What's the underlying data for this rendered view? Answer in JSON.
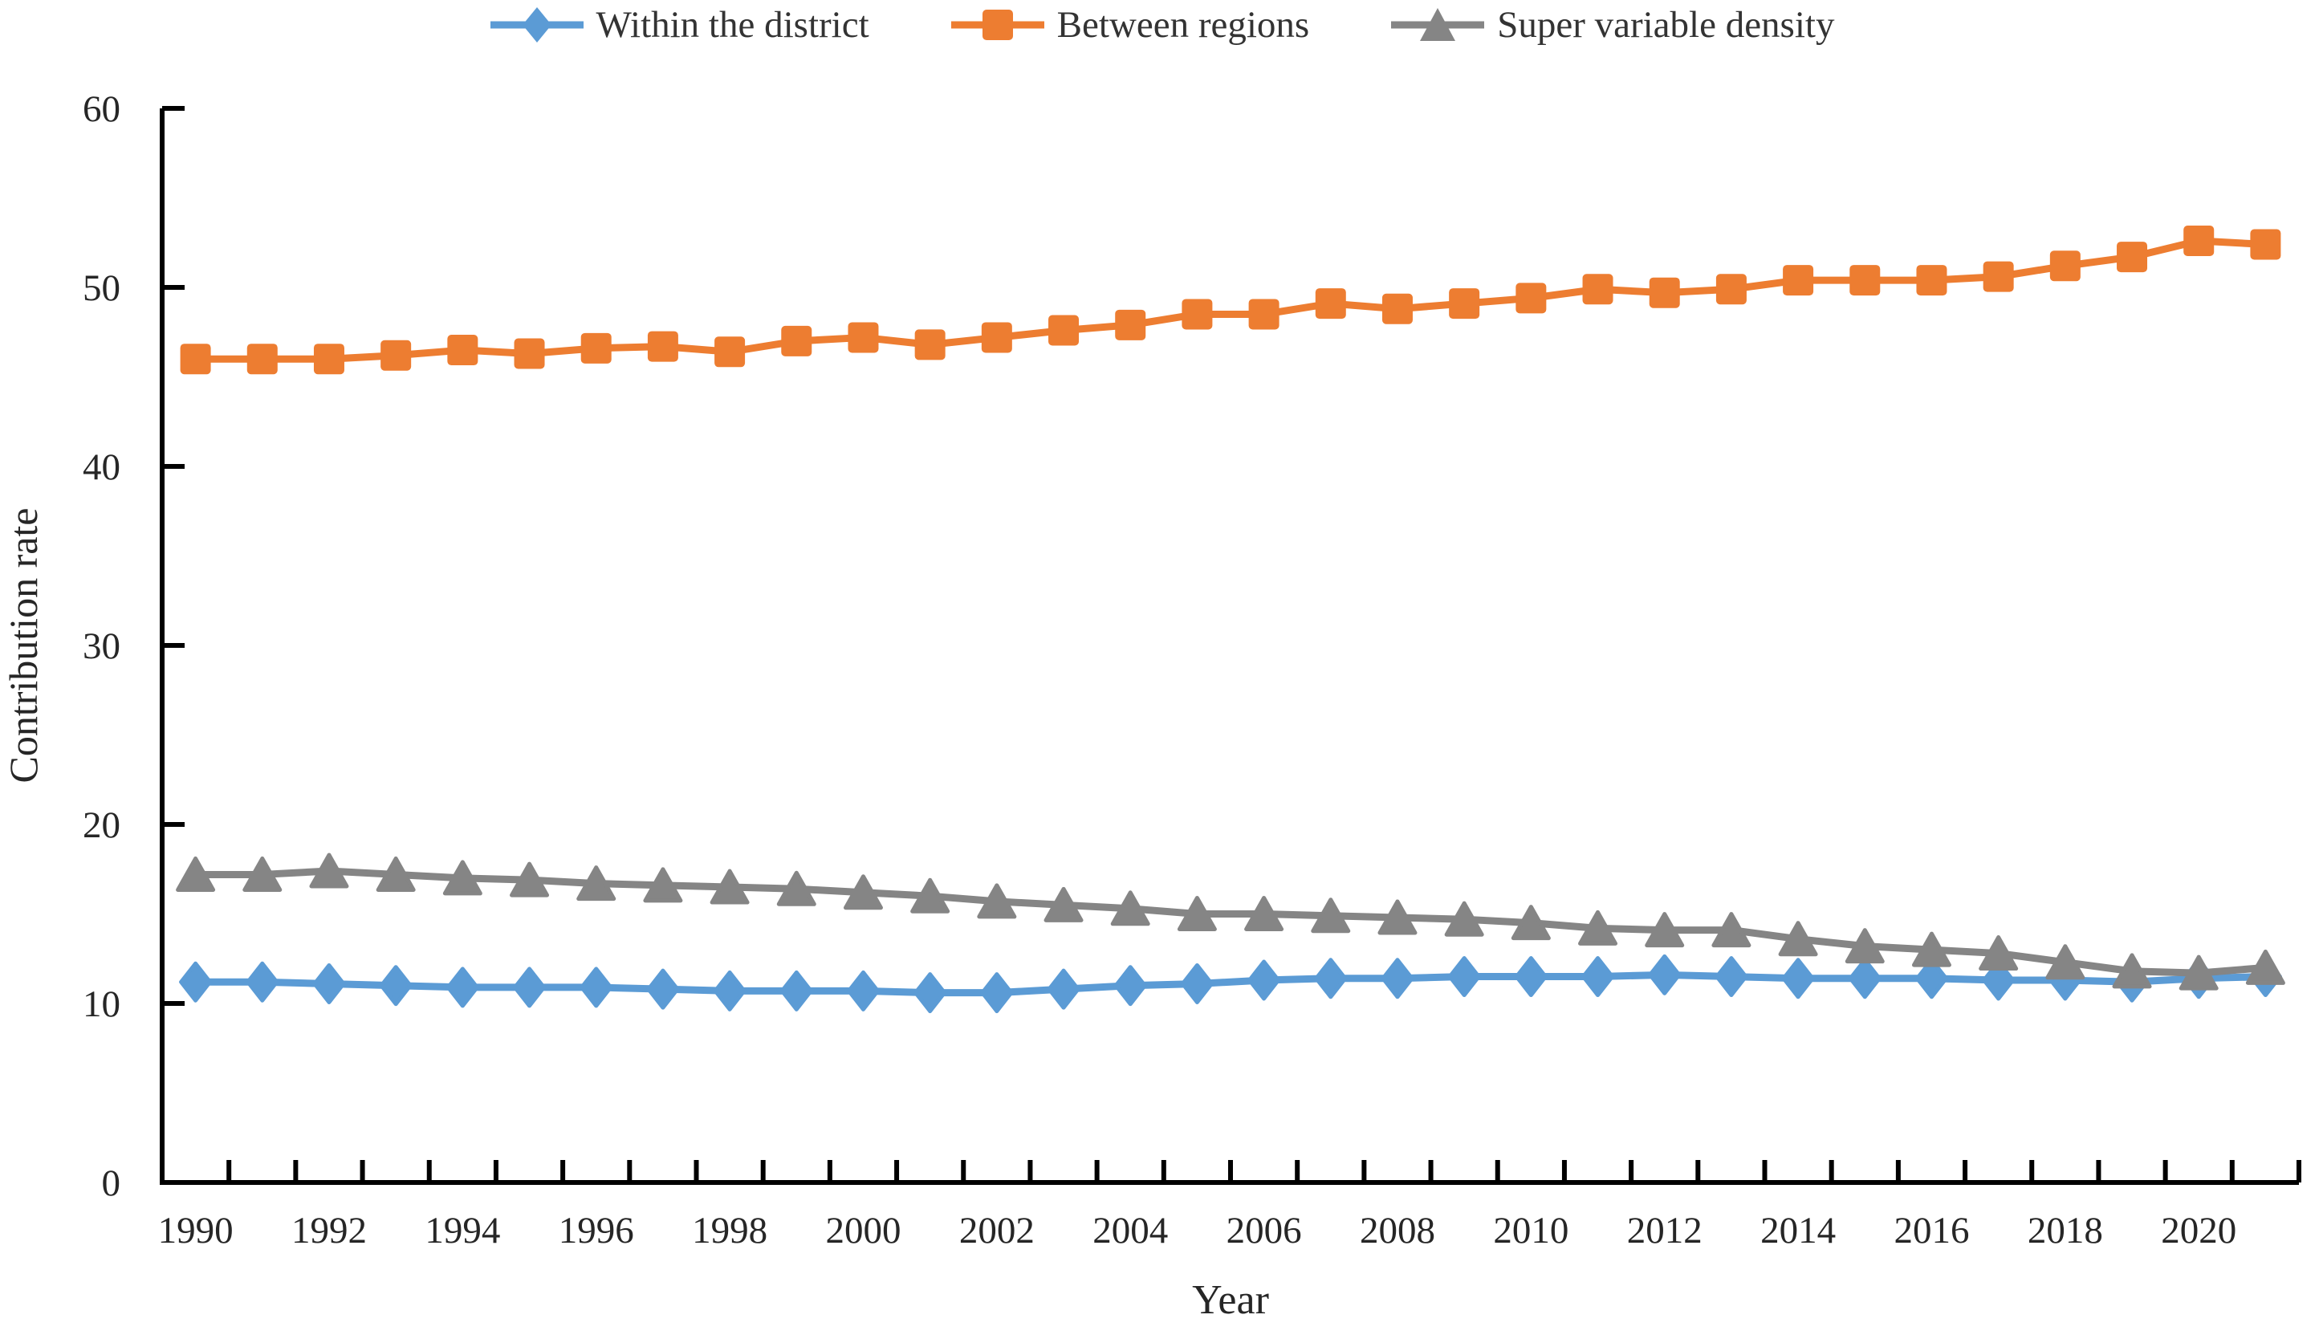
{
  "chart_data": {
    "type": "line",
    "title": "",
    "xlabel": "Year",
    "ylabel": "Contribution rate",
    "x": [
      1990,
      1991,
      1992,
      1993,
      1994,
      1995,
      1996,
      1997,
      1998,
      1999,
      2000,
      2001,
      2002,
      2003,
      2004,
      2005,
      2006,
      2007,
      2008,
      2009,
      2010,
      2011,
      2012,
      2013,
      2014,
      2015,
      2016,
      2017,
      2018,
      2019,
      2020,
      2021
    ],
    "x_tick_labels": [
      "1990",
      "1992",
      "1994",
      "1996",
      "1998",
      "2000",
      "2002",
      "2004",
      "2006",
      "2008",
      "2010",
      "2012",
      "2014",
      "2016",
      "2018",
      "2020"
    ],
    "x_label_every": 2,
    "ylim": [
      0,
      60
    ],
    "yticks": [
      0,
      10,
      20,
      30,
      40,
      50,
      60
    ],
    "grid": false,
    "legend_position": "top",
    "series": [
      {
        "name": "Within the district",
        "marker": "diamond",
        "color": "#5B9BD5",
        "values": [
          11.2,
          11.2,
          11.1,
          11.0,
          10.9,
          10.9,
          10.9,
          10.8,
          10.7,
          10.7,
          10.7,
          10.6,
          10.6,
          10.8,
          11.0,
          11.1,
          11.3,
          11.4,
          11.4,
          11.5,
          11.5,
          11.5,
          11.6,
          11.5,
          11.4,
          11.4,
          11.4,
          11.3,
          11.3,
          11.2,
          11.4,
          11.5
        ]
      },
      {
        "name": "Between regions",
        "marker": "square",
        "color": "#ED7D31",
        "values": [
          46.0,
          46.0,
          46.0,
          46.2,
          46.5,
          46.3,
          46.6,
          46.7,
          46.4,
          47.0,
          47.2,
          46.8,
          47.2,
          47.6,
          47.9,
          48.5,
          48.5,
          49.1,
          48.8,
          49.1,
          49.4,
          49.9,
          49.7,
          49.9,
          50.4,
          50.4,
          50.4,
          50.6,
          51.2,
          51.7,
          52.6,
          52.4
        ]
      },
      {
        "name": "Super variable density",
        "marker": "triangle",
        "color": "#858585",
        "values": [
          17.2,
          17.2,
          17.4,
          17.2,
          17.0,
          16.9,
          16.7,
          16.6,
          16.5,
          16.4,
          16.2,
          16.0,
          15.7,
          15.5,
          15.3,
          15.0,
          15.0,
          14.9,
          14.8,
          14.7,
          14.5,
          14.2,
          14.1,
          14.1,
          13.6,
          13.2,
          13.0,
          12.8,
          12.3,
          11.8,
          11.7,
          12.0
        ]
      }
    ],
    "axis_color": "#000000",
    "text_color": "#262626"
  }
}
